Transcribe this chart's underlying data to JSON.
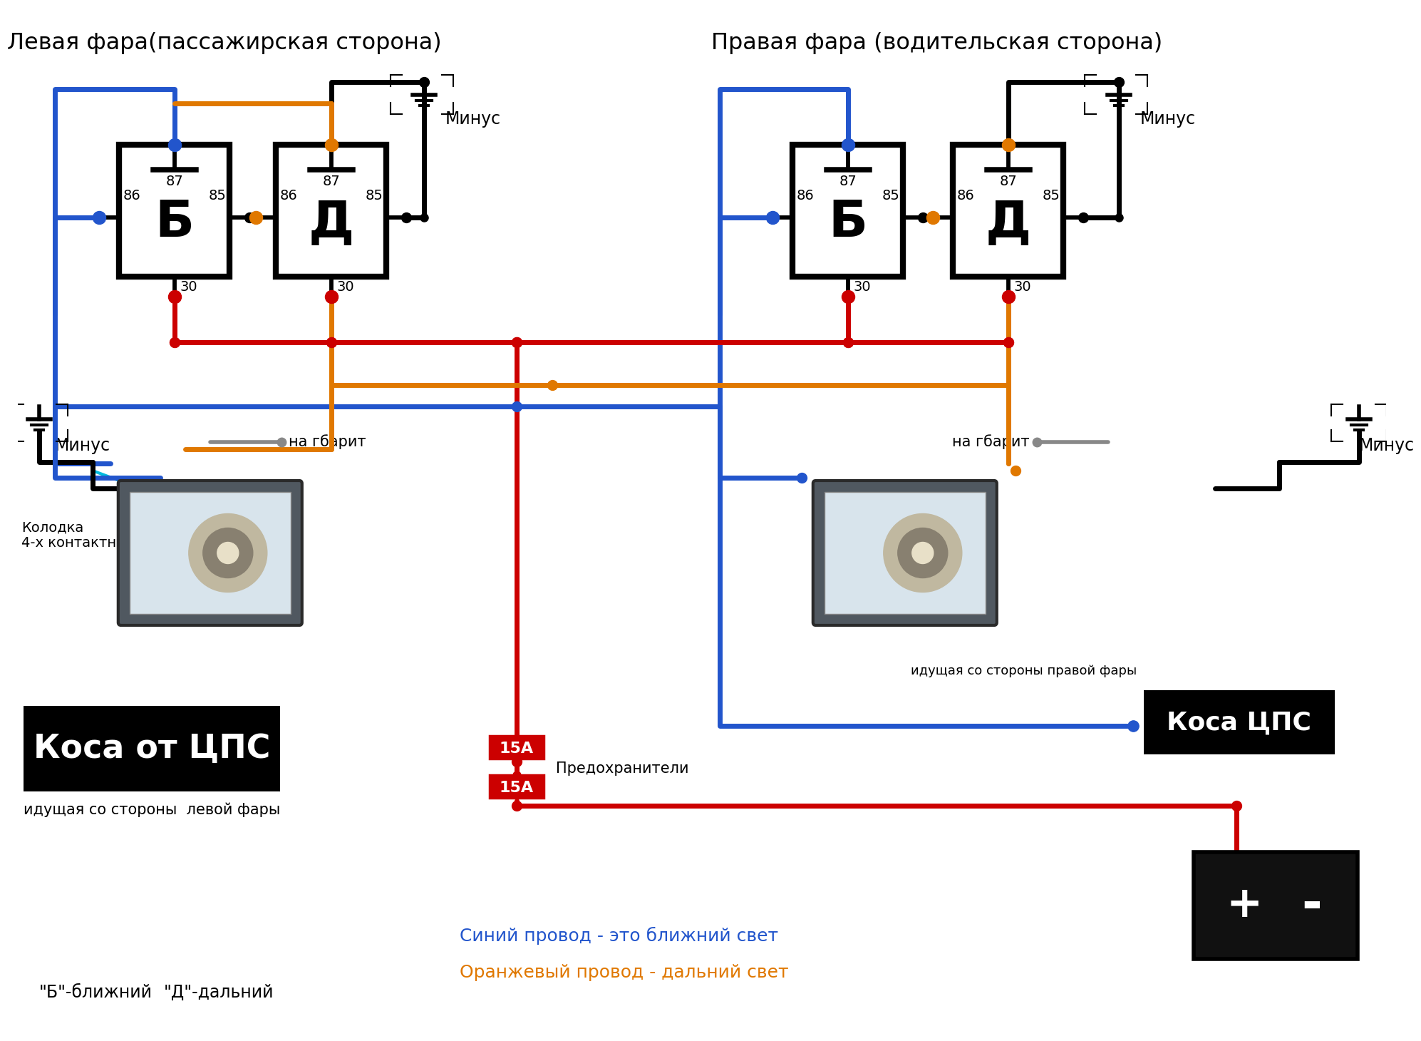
{
  "title_left": "Левая фара(пассажирская сторона)",
  "title_right": "Правая фара (водительская сторона)",
  "bg_color": "#ffffff",
  "color_blue": "#2255cc",
  "color_orange": "#e07800",
  "color_red": "#cc0000",
  "color_black": "#000000",
  "color_gray": "#888888",
  "color_cyan": "#00bbdd",
  "minus_label": "Минус",
  "kosa_left_label": "Коса от ЦПС",
  "kosa_left_sub": "идущая со стороны  левой фары",
  "kosa_right_label": "Коса ЦПС",
  "kosa_right_sub": "идущая со стороны правой фары",
  "kolodka_label": "Колодка\n4-х контактная",
  "na_gbarit": "на гбарит",
  "predohraniteli": "Предохранители",
  "fuse_label": "15А",
  "legend_blue": "Синий провод - это ближний свет",
  "legend_orange": "Оранжевый провод - дальний свет",
  "b_label": "\"Б\"-ближний",
  "d_label": "\"Д\"-дальний",
  "lw": 5.0,
  "relay_lw": 6.0
}
